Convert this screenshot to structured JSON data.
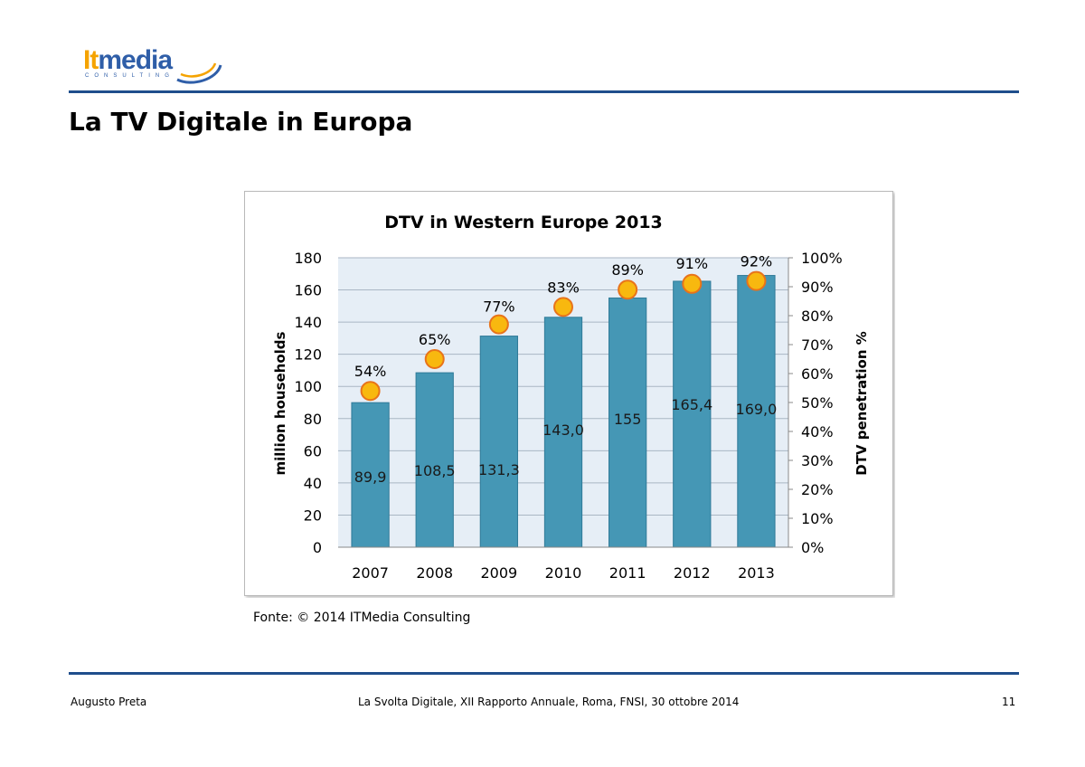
{
  "logo": {
    "part1": "It",
    "part2": "media",
    "tagline": "CONSULTING"
  },
  "page": {
    "title": "La TV Digitale in Europa"
  },
  "source": "Fonte: © 2014 ITMedia Consulting",
  "footer": {
    "author": "Augusto Preta",
    "event": "La Svolta Digitale, XII Rapporto Annuale, Roma, FNSI, 30 ottobre 2014",
    "page_number": "11"
  },
  "chart_data": {
    "type": "bar",
    "title": "DTV in Western Europe 2013",
    "categories": [
      "2007",
      "2008",
      "2009",
      "2010",
      "2011",
      "2012",
      "2013"
    ],
    "series": [
      {
        "name": "million households",
        "type": "bar",
        "axis": "left",
        "values": [
          89.9,
          108.5,
          131.3,
          143.0,
          155,
          165.4,
          169.0
        ],
        "labels": [
          "89,9",
          "108,5",
          "131,3",
          "143,0",
          "155",
          "165,4",
          "169,0"
        ]
      },
      {
        "name": "DTV penetration %",
        "type": "scatter",
        "axis": "right",
        "values": [
          54,
          65,
          77,
          83,
          89,
          91,
          92
        ],
        "labels": [
          "54%",
          "65%",
          "77%",
          "83%",
          "89%",
          "91%",
          "92%"
        ]
      }
    ],
    "ylabel": "million households",
    "ylabel_right": "DTV penetration %",
    "ylim": [
      0,
      180
    ],
    "yticks": [
      "0",
      "20",
      "40",
      "60",
      "80",
      "100",
      "120",
      "140",
      "160",
      "180"
    ],
    "ylim_right": [
      0,
      100
    ],
    "yticks_right": [
      "0%",
      "10%",
      "20%",
      "30%",
      "40%",
      "50%",
      "60%",
      "70%",
      "80%",
      "90%",
      "100%"
    ],
    "grid": true,
    "colors": {
      "bar": "#4597b5",
      "bar_edge": "#2f7a98",
      "marker": "#f8b80f",
      "marker_edge": "#e8731a",
      "plot_bg": "#e6eef6",
      "grid": "#a9b6c4"
    }
  }
}
